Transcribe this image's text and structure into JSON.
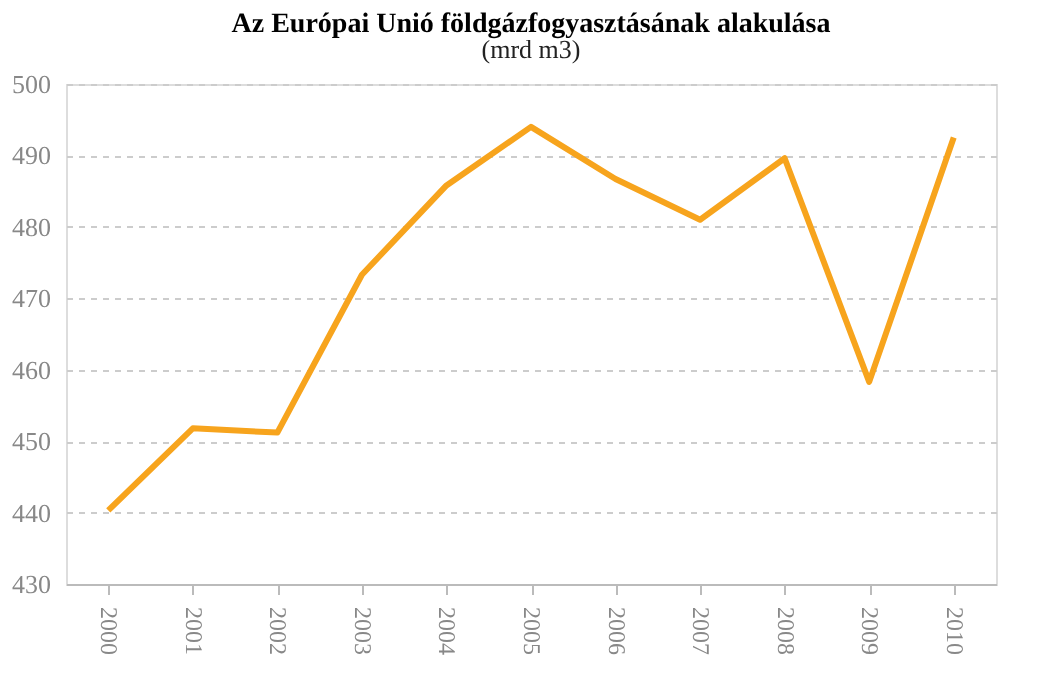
{
  "chart_data": {
    "type": "line",
    "title": "Az Európai Unió földgázfogyasztásának alakulása",
    "subtitle": "(mrd m3)",
    "categories": [
      "2000",
      "2001",
      "2002",
      "2003",
      "2004",
      "2005",
      "2006",
      "2007",
      "2008",
      "2009",
      "2010"
    ],
    "series": [
      {
        "color": "#f7a41d",
        "values": [
          440.3,
          451.8,
          451.2,
          473.3,
          485.8,
          494.0,
          486.7,
          481.0,
          489.6,
          458.3,
          492.5
        ]
      }
    ],
    "ylim": [
      430,
      500
    ],
    "yticks": [
      430,
      440,
      450,
      460,
      470,
      480,
      490,
      500
    ],
    "grid": "y",
    "marker": "none",
    "line_style": "solid"
  }
}
